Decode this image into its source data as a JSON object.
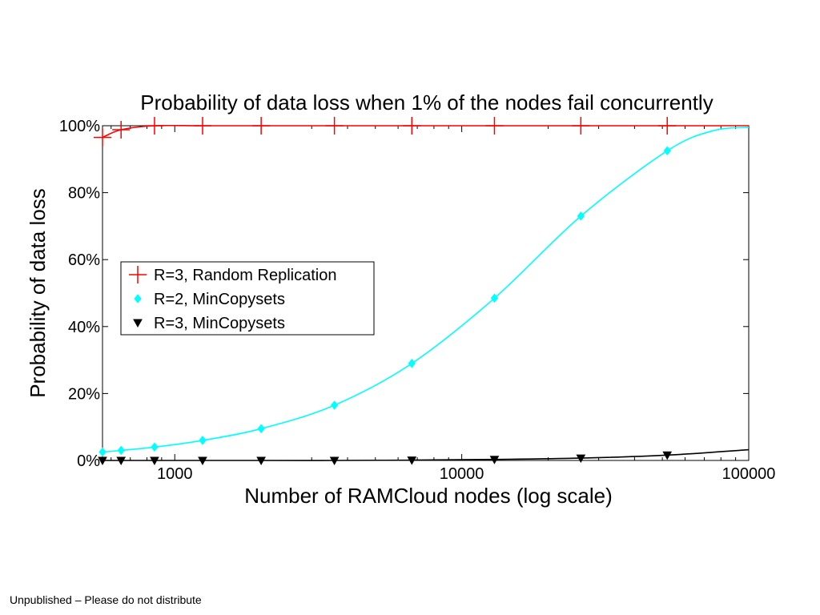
{
  "footer": {
    "note": "Unpublished – Please do not distribute"
  },
  "chart_data": {
    "type": "line",
    "title": "Probability of data loss when 1% of the nodes fail concurrently",
    "xlabel": "Number of RAMCloud nodes (log scale)",
    "ylabel": "Probability of data loss",
    "x_scale": "log",
    "xlim": [
      560,
      100000
    ],
    "ylim": [
      0,
      100
    ],
    "x_ticks": [
      1000,
      10000,
      100000
    ],
    "x_tick_labels": [
      "1000",
      "10000",
      "100000"
    ],
    "y_ticks": [
      0,
      20,
      40,
      60,
      80,
      100
    ],
    "y_tick_labels": [
      "0%",
      "20%",
      "40%",
      "60%",
      "80%",
      "100%"
    ],
    "grid": false,
    "legend_position": "center-left",
    "series": [
      {
        "name": "R=3, Random Replication",
        "color": "#ff0000",
        "marker": "plus",
        "x": [
          560,
          650,
          850,
          1250,
          2000,
          3600,
          6700,
          13000,
          26000,
          52000
        ],
        "y": [
          96.5,
          98.8,
          100,
          100,
          100,
          100,
          100,
          100,
          100,
          100
        ]
      },
      {
        "name": "R=2, MinCopysets",
        "color": "#00ffff",
        "marker": "diamond",
        "x": [
          560,
          650,
          850,
          1250,
          2000,
          3600,
          6700,
          13000,
          26000,
          52000
        ],
        "y": [
          2.5,
          3.0,
          4.0,
          6.0,
          9.5,
          16.5,
          29.0,
          48.5,
          73.0,
          92.5
        ]
      },
      {
        "name": "R=3, MinCopysets",
        "color": "#000000",
        "marker": "triangle-down",
        "x": [
          560,
          650,
          850,
          1250,
          2000,
          3600,
          6700,
          13000,
          26000,
          52000
        ],
        "y": [
          0,
          0,
          0,
          0,
          0,
          0,
          0.1,
          0.3,
          0.7,
          1.6
        ]
      }
    ]
  }
}
